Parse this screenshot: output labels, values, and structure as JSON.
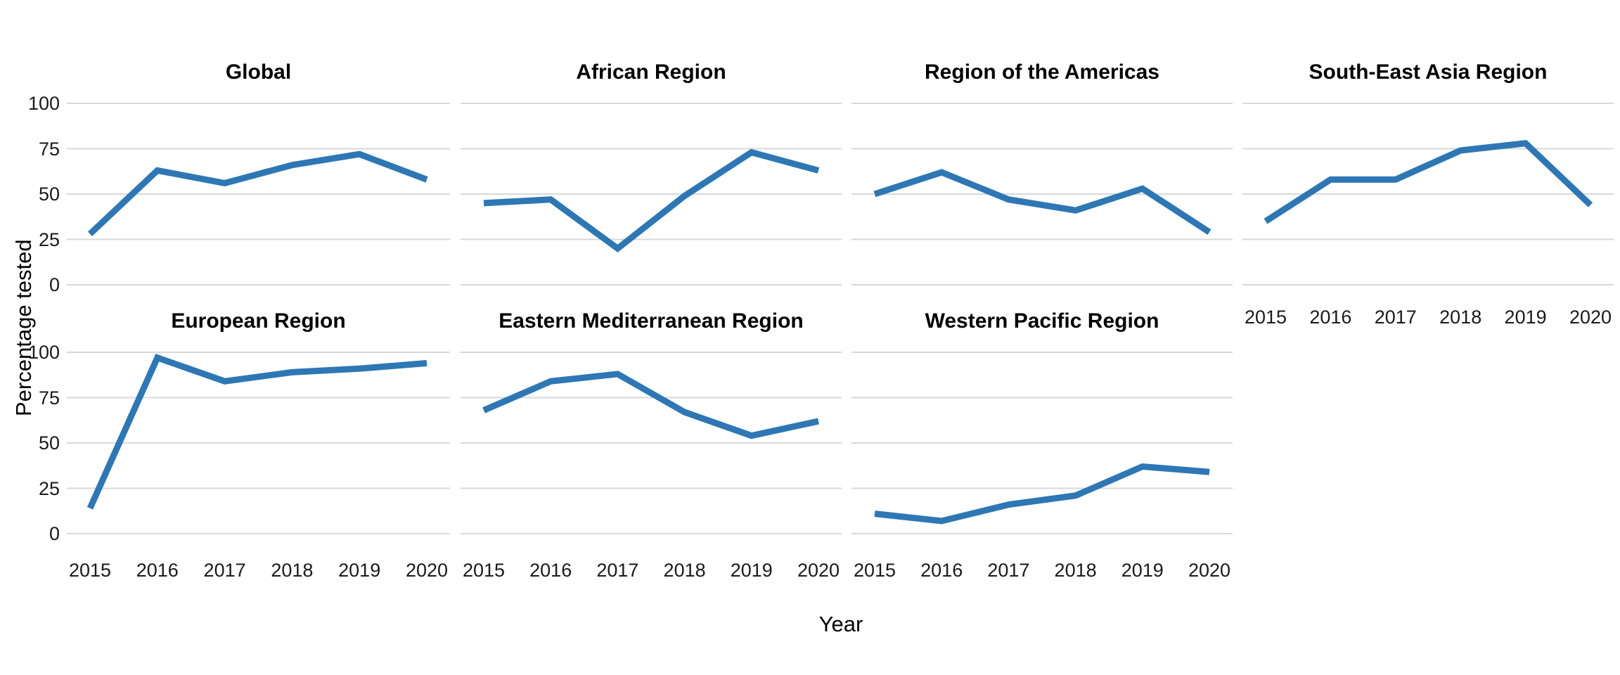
{
  "chart_data": {
    "type": "line",
    "x": [
      2015,
      2016,
      2017,
      2018,
      2019,
      2020
    ],
    "xlabel": "Year",
    "ylabel": "Percentage tested",
    "ylim": [
      0,
      100
    ],
    "yticks": [
      0,
      25,
      50,
      75,
      100
    ],
    "grid": "horizontal-only",
    "legend": "none",
    "facet_layout": {
      "rows": 2,
      "cols": 4,
      "last_row_panels": 3
    },
    "line_color": "#2E77B4",
    "gridline_color": "#d8d8d8",
    "text_color": "#1a1a1a",
    "title_color": "#000000",
    "background_color": "#ffffff",
    "facets": [
      {
        "title": "Global",
        "values": [
          28,
          63,
          56,
          66,
          72,
          58
        ]
      },
      {
        "title": "African Region",
        "values": [
          45,
          47,
          20,
          49,
          73,
          63
        ]
      },
      {
        "title": "Region of the Americas",
        "values": [
          50,
          62,
          47,
          41,
          53,
          29
        ]
      },
      {
        "title": "South-East Asia Region",
        "values": [
          35,
          58,
          58,
          74,
          78,
          44
        ]
      },
      {
        "title": "European Region",
        "values": [
          14,
          97,
          84,
          89,
          91,
          94
        ]
      },
      {
        "title": "Eastern Mediterranean Region",
        "values": [
          68,
          84,
          88,
          67,
          54,
          62
        ]
      },
      {
        "title": "Western Pacific Region",
        "values": [
          11,
          7,
          16,
          21,
          37,
          34
        ]
      }
    ]
  }
}
